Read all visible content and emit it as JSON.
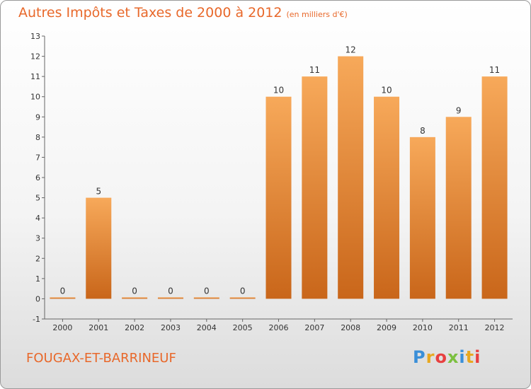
{
  "header": {
    "title": "Autres Impôts et Taxes de 2000 à 2012",
    "unit": "(en milliers d'€)"
  },
  "footer": {
    "commune": "FOUGAX-ET-BARRINEUF",
    "logo": "Proxiti"
  },
  "chart_data": {
    "type": "bar",
    "title": "Autres Impôts et Taxes de 2000 à 2012",
    "subtitle": "(en milliers d'€)",
    "categories": [
      "2000",
      "2001",
      "2002",
      "2003",
      "2004",
      "2005",
      "2006",
      "2007",
      "2008",
      "2009",
      "2010",
      "2011",
      "2012"
    ],
    "values": [
      0,
      5,
      0,
      0,
      0,
      0,
      10,
      11,
      12,
      10,
      8,
      9,
      11
    ],
    "data_labels": [
      "0",
      "5",
      "0",
      "0",
      "0",
      "0",
      "10",
      "11",
      "12",
      "10",
      "8",
      "9",
      "11"
    ],
    "ylim": [
      -1,
      13
    ],
    "yticks": [
      -1,
      0,
      1,
      2,
      3,
      4,
      5,
      6,
      7,
      8,
      9,
      10,
      11,
      12,
      13
    ],
    "grid": false,
    "bar_color": "#e8812f",
    "xlabel": "",
    "ylabel": ""
  }
}
